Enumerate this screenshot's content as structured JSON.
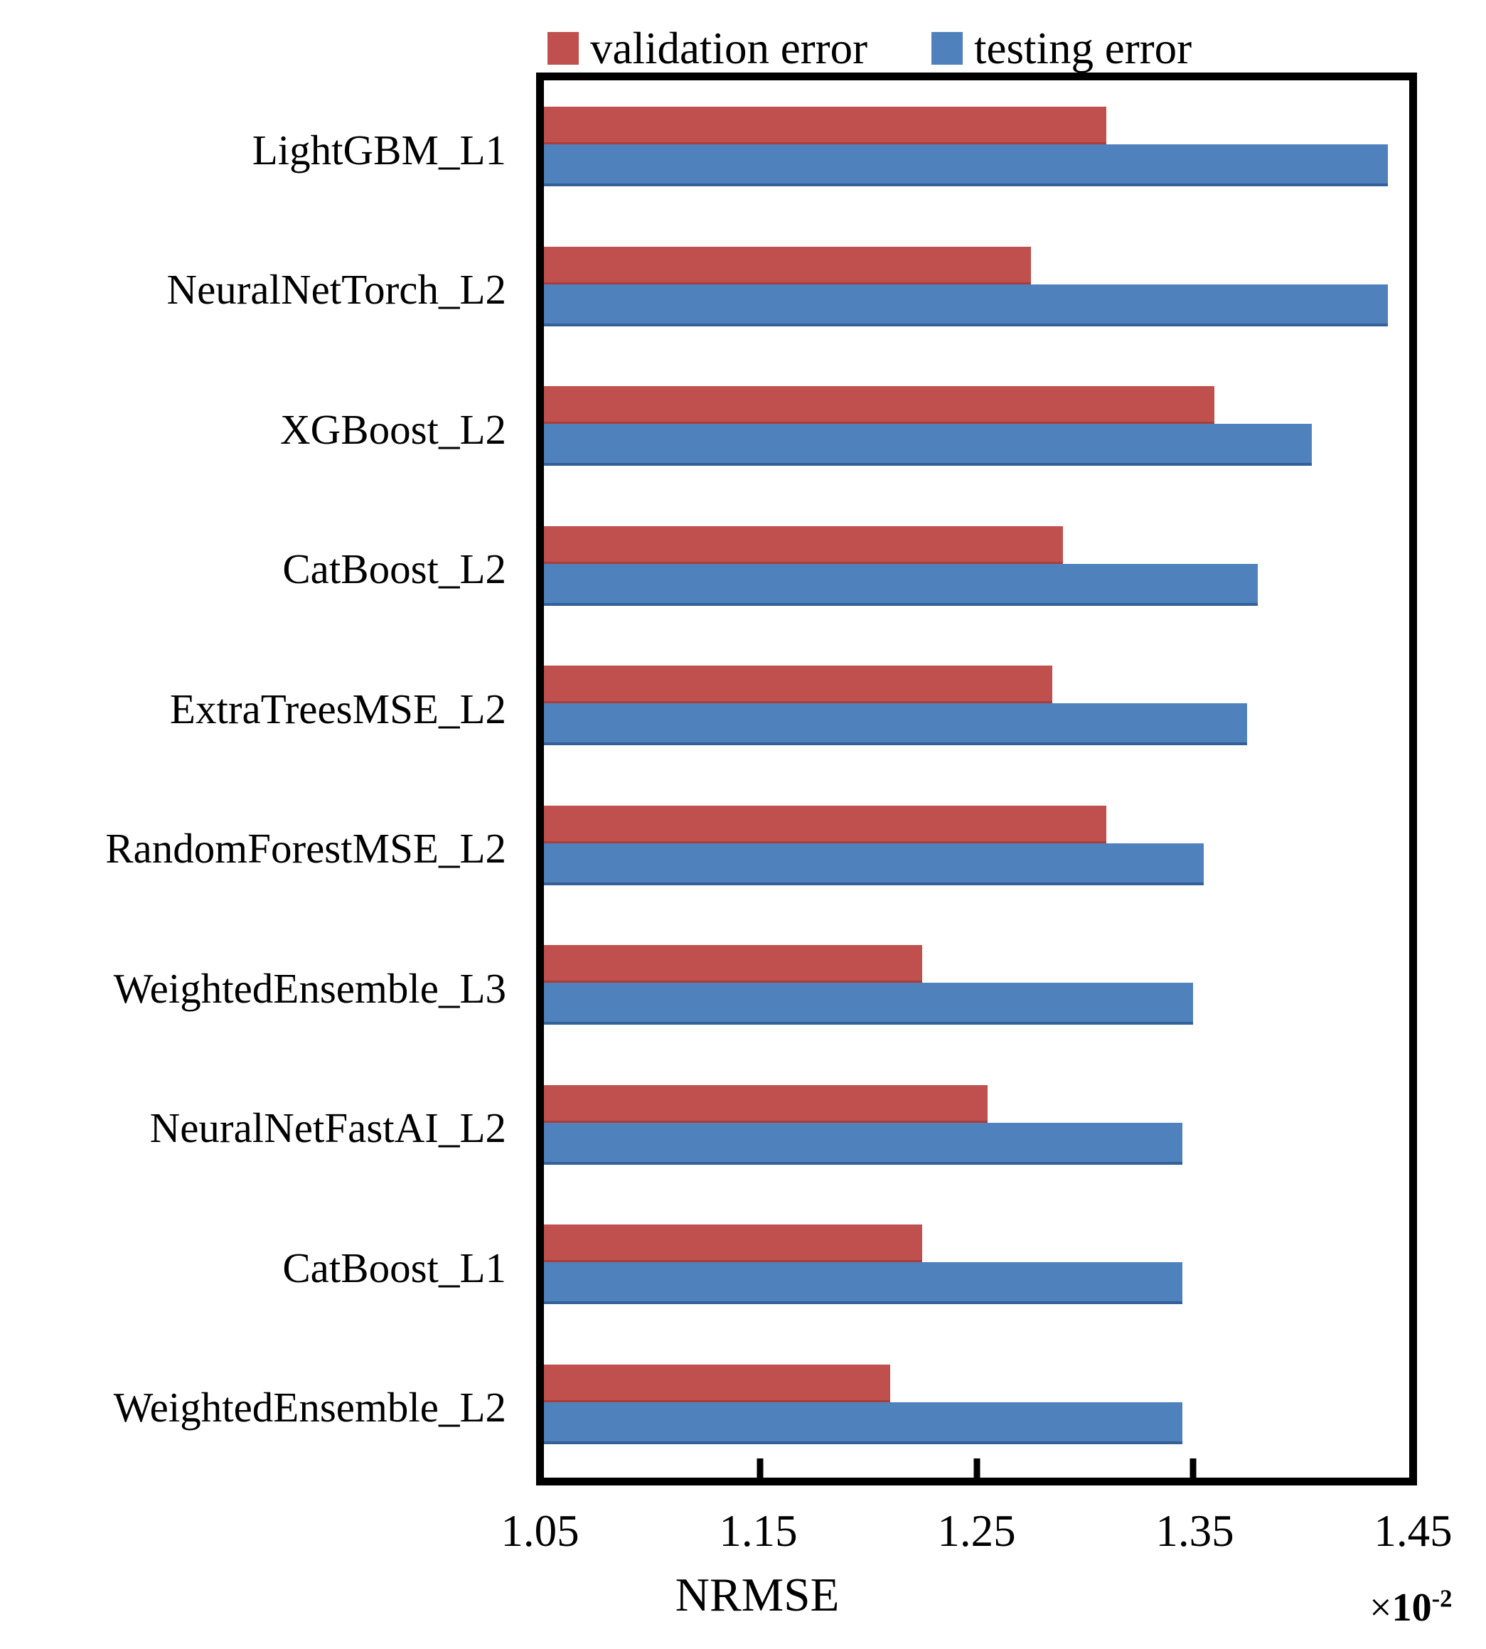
{
  "legend": {
    "items": [
      {
        "label": "validation error",
        "color": "#C0504D"
      },
      {
        "label": "testing error",
        "color": "#4F81BD"
      }
    ]
  },
  "chart_data": {
    "type": "bar",
    "orientation": "horizontal",
    "title": "",
    "xlabel": "NRMSE",
    "multiplier": {
      "times": "×",
      "base": "10",
      "exp": "-2"
    },
    "categories": [
      "LightGBM_L1",
      "NeuralNetTorch_L2",
      "XGBoost_L2",
      "CatBoost_L2",
      "ExtraTreesMSE_L2",
      "RandomForestMSE_L2",
      "WeightedEnsemble_L3",
      "NeuralNetFastAI_L2",
      "CatBoost_L1",
      "WeightedEnsemble_L2"
    ],
    "series": [
      {
        "name": "validation error",
        "color": "#C0504D",
        "values": [
          1.31,
          1.275,
          1.36,
          1.29,
          1.285,
          1.31,
          1.225,
          1.255,
          1.225,
          1.21
        ]
      },
      {
        "name": "testing error",
        "color": "#4F81BD",
        "values": [
          1.44,
          1.44,
          1.405,
          1.38,
          1.375,
          1.355,
          1.35,
          1.345,
          1.345,
          1.345
        ]
      }
    ],
    "xlim": [
      1.05,
      1.45
    ],
    "xticks": [
      1.05,
      1.15,
      1.25,
      1.35,
      1.45
    ],
    "xtick_labels": [
      "1.05",
      "1.15",
      "1.25",
      "1.35",
      "1.45"
    ],
    "interior_tick_marks": [
      1.15,
      1.25,
      1.35
    ],
    "grid": false,
    "legend_position": "top",
    "axis_color": "#000000",
    "background_color": "#ffffff"
  }
}
